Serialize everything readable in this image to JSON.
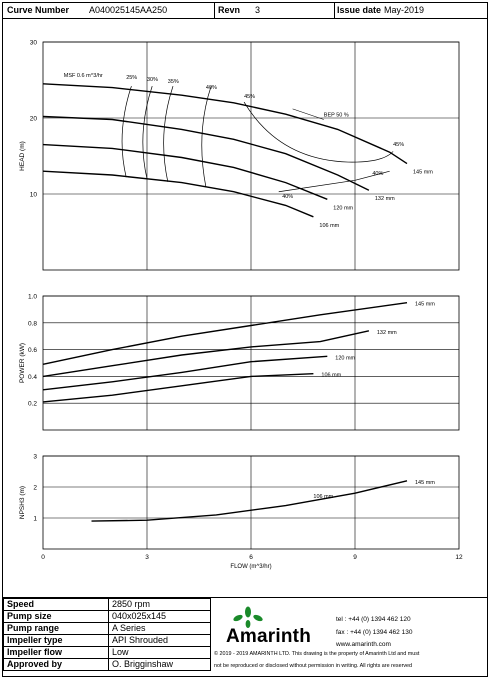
{
  "header": {
    "curve_number_label": "Curve Number",
    "curve_number": "A040025145AA250",
    "revn_label": "Revn",
    "revn": "3",
    "issue_label": "Issue date",
    "issue_date": "May-2019"
  },
  "chart_data": [
    {
      "type": "line",
      "ylabel": "HEAD (m)",
      "xlim": [
        0,
        12
      ],
      "ylim": [
        0,
        30
      ],
      "yticks": [
        10,
        20,
        30
      ],
      "grid": true,
      "series": [
        {
          "name": "145 mm",
          "x": [
            0,
            2,
            4,
            5.5,
            7,
            8.5,
            10,
            10.5
          ],
          "y": [
            24.5,
            24,
            23,
            22,
            20.5,
            18.5,
            15.5,
            14
          ]
        },
        {
          "name": "132 mm",
          "x": [
            0,
            2,
            4,
            5.5,
            7,
            8.5,
            9.4
          ],
          "y": [
            20.2,
            19.8,
            18.5,
            17.2,
            15.3,
            12.5,
            10.5
          ]
        },
        {
          "name": "120 mm",
          "x": [
            0,
            2,
            4,
            5.5,
            7,
            8.2
          ],
          "y": [
            16.5,
            16,
            14.8,
            13.5,
            11.5,
            9.3
          ]
        },
        {
          "name": "106 mm",
          "x": [
            0,
            2,
            4,
            5.5,
            7,
            7.8
          ],
          "y": [
            13,
            12.5,
            11.5,
            10.3,
            8.5,
            7
          ]
        }
      ],
      "annotations": {
        "msf": "MSF 0.6 m^3/hr",
        "eff": [
          "25%",
          "30%",
          "35%",
          "40%",
          "45%"
        ],
        "bep": "BEP 50 %",
        "eff_right": [
          "45%",
          "40%",
          "40%"
        ]
      }
    },
    {
      "type": "line",
      "ylabel": "POWER (kW)",
      "xlim": [
        0,
        12
      ],
      "ylim": [
        0,
        1.0
      ],
      "yticks": [
        0.2,
        0.4,
        0.6,
        0.8,
        1.0
      ],
      "ytick_labels": [
        "0.2",
        "0.4",
        "0.6",
        "0.8",
        "1.0"
      ],
      "grid": true,
      "series": [
        {
          "name": "145 mm",
          "x": [
            0,
            2,
            4,
            6,
            8,
            10.5
          ],
          "y": [
            0.49,
            0.6,
            0.7,
            0.78,
            0.86,
            0.95
          ]
        },
        {
          "name": "132 mm",
          "x": [
            0,
            2,
            4,
            6,
            8,
            9.4
          ],
          "y": [
            0.4,
            0.48,
            0.56,
            0.62,
            0.66,
            0.74
          ]
        },
        {
          "name": "120 mm",
          "x": [
            0,
            2,
            4,
            6,
            8.2
          ],
          "y": [
            0.3,
            0.36,
            0.43,
            0.51,
            0.55
          ]
        },
        {
          "name": "106 mm",
          "x": [
            0,
            2,
            4,
            6,
            7.8
          ],
          "y": [
            0.21,
            0.26,
            0.33,
            0.4,
            0.42
          ]
        }
      ]
    },
    {
      "type": "line",
      "xlabel": "FLOW (m^3/hr)",
      "ylabel": "NPSH3 (m)",
      "xlim": [
        0,
        12
      ],
      "ylim": [
        0,
        3
      ],
      "xticks": [
        0,
        3,
        6,
        9,
        12
      ],
      "yticks": [
        1,
        2,
        3
      ],
      "grid": true,
      "series": [
        {
          "name": "145 mm",
          "x": [
            1.4,
            3,
            5,
            7,
            9,
            10.5
          ],
          "y": [
            0.9,
            0.93,
            1.1,
            1.4,
            1.8,
            2.2
          ]
        }
      ],
      "annotations": {
        "mid_label": "106 mm"
      }
    }
  ],
  "footer": {
    "rows": [
      {
        "label": "Speed",
        "value": "2850 rpm"
      },
      {
        "label": "Pump size",
        "value": "040x025x145"
      },
      {
        "label": "Pump range",
        "value": "A Series"
      },
      {
        "label": "Impeller type",
        "value": "API Shrouded"
      },
      {
        "label": "Impeller flow",
        "value": "Low"
      },
      {
        "label": "Approved by",
        "value": "O. Brigginshaw"
      }
    ],
    "brand": "Amarinth",
    "tel": "tel :  +44 (0) 1394 462 120",
    "fax": "fax :  +44 (0) 1394 462 130",
    "web": "www.amarinth.com",
    "copyright": "© 2019 - 2019 AMARINTH LTD. This drawing is the property of Amarinth Ltd and must",
    "notice": "not be reproduced or disclosed without permission in writing. All rights are reserved",
    "brand_color": "#1a8a2a"
  }
}
